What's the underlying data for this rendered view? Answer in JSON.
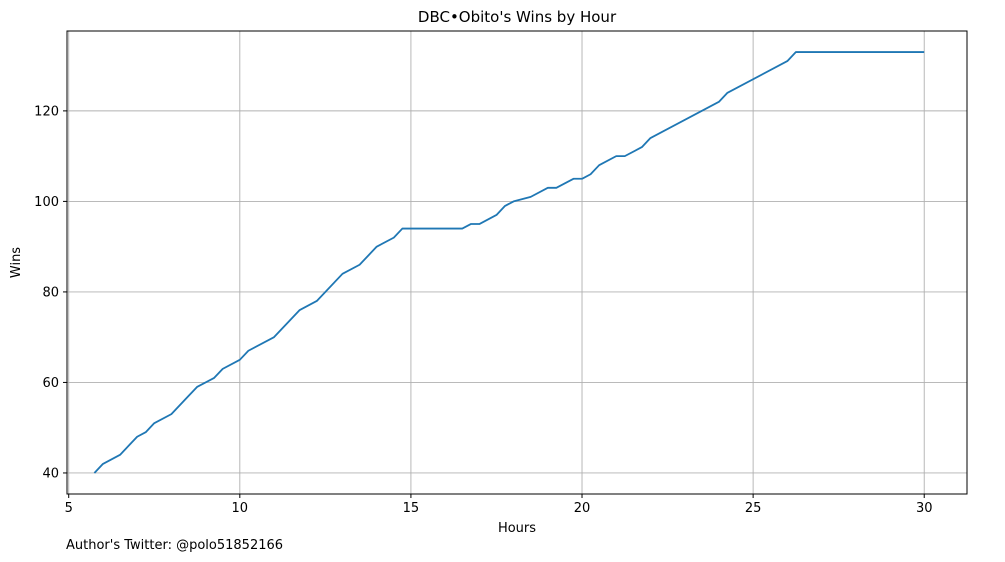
{
  "chart_data": {
    "type": "line",
    "title": "DBC•Obito's Wins by Hour",
    "xlabel": "Hours",
    "ylabel": "Wins",
    "xlim": [
      4.95,
      31.25
    ],
    "ylim": [
      35.35,
      137.65
    ],
    "xticks": [
      5,
      10,
      15,
      20,
      25,
      30
    ],
    "yticks": [
      40,
      60,
      80,
      100,
      120
    ],
    "grid": true,
    "line_color": "#1f77b4",
    "series": [
      {
        "x": [
          5.75,
          6.0,
          6.5,
          7.0,
          7.25,
          7.5,
          8.0,
          8.5,
          8.75,
          9.25,
          9.5,
          10.0,
          10.25,
          11.0,
          11.75,
          12.25,
          13.0,
          13.5,
          14.0,
          14.5,
          14.75,
          15.0,
          16.5,
          16.75,
          17.0,
          17.5,
          17.75,
          18.0,
          18.5,
          19.0,
          19.25,
          19.75,
          20.0,
          20.25,
          20.5,
          21.0,
          21.25,
          21.75,
          22.0,
          24.0,
          24.25,
          26.0,
          26.25,
          30.0
        ],
        "y": [
          40,
          42,
          44,
          48,
          49,
          51,
          53,
          57,
          59,
          61,
          63,
          65,
          67,
          70,
          76,
          78,
          84,
          86,
          90,
          92,
          94,
          94,
          94,
          95,
          95,
          97,
          99,
          100,
          101,
          103,
          103,
          105,
          105,
          106,
          108,
          110,
          110,
          112,
          114,
          122,
          124,
          131,
          133,
          133
        ]
      }
    ]
  },
  "footer": {
    "text": "Author's Twitter: @polo51852166"
  }
}
